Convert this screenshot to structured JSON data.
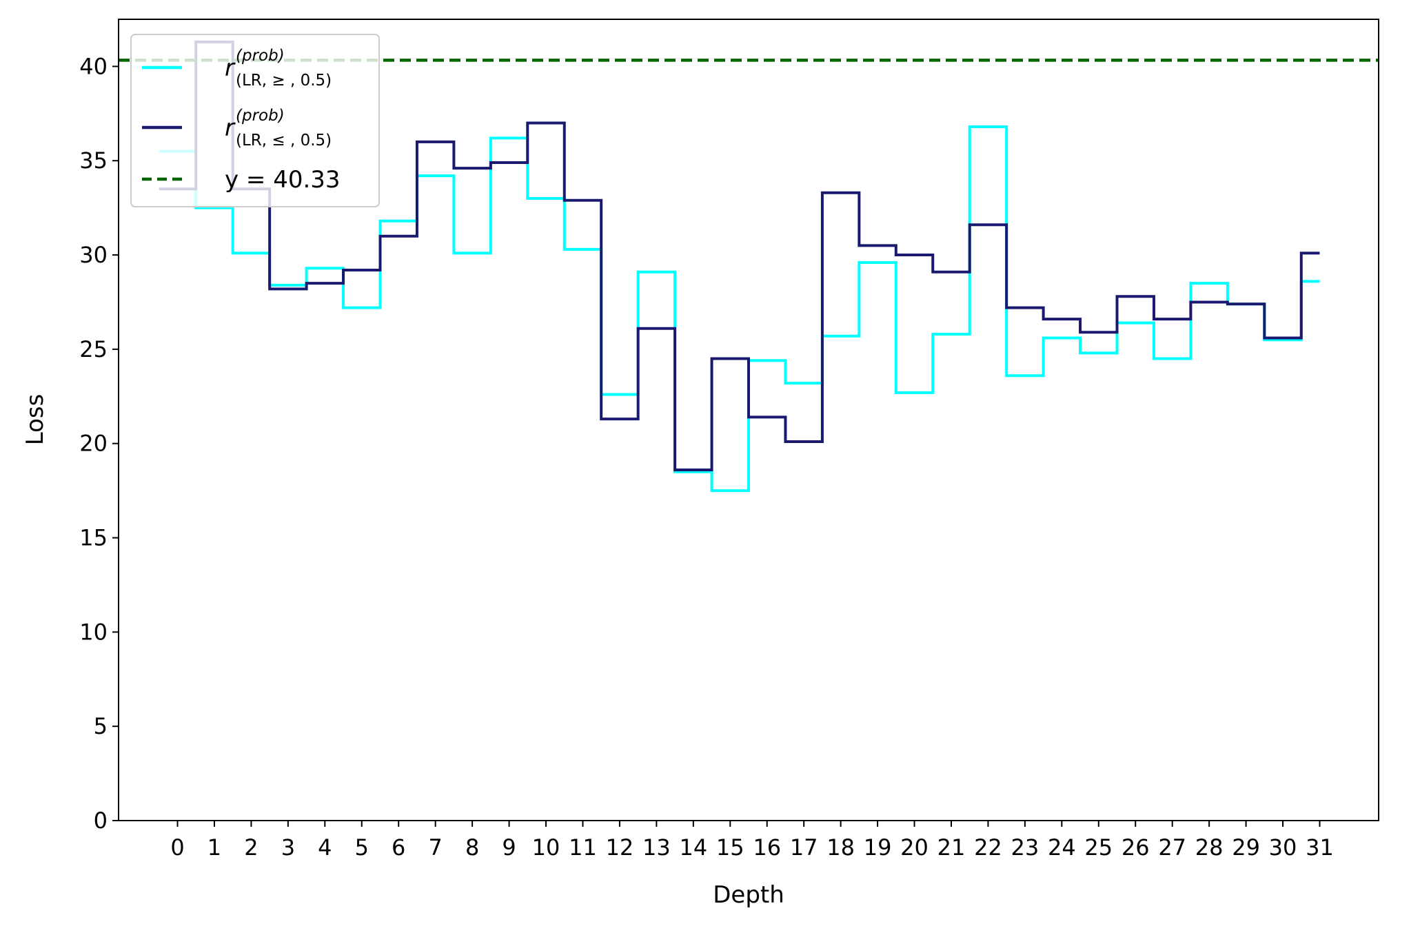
{
  "chart_data": {
    "type": "line",
    "drawstyle": "steps-mid",
    "xlabel": "Depth",
    "ylabel": "Loss",
    "ylim": [
      0,
      42.5
    ],
    "xlim": [
      -1.6,
      32.6
    ],
    "xticks": [
      0,
      1,
      2,
      3,
      4,
      5,
      6,
      7,
      8,
      9,
      10,
      11,
      12,
      13,
      14,
      15,
      16,
      17,
      18,
      19,
      20,
      21,
      22,
      23,
      24,
      25,
      26,
      27,
      28,
      29,
      30,
      31
    ],
    "yticks": [
      0,
      5,
      10,
      15,
      20,
      25,
      30,
      35,
      40
    ],
    "grid": false,
    "legend_position": "upper-left",
    "x": [
      0,
      1,
      2,
      3,
      4,
      5,
      6,
      7,
      8,
      9,
      10,
      11,
      12,
      13,
      14,
      15,
      16,
      17,
      18,
      19,
      20,
      21,
      22,
      23,
      24,
      25,
      26,
      27,
      28,
      29,
      30,
      31
    ],
    "series": [
      {
        "name": "r_{(LR, ≥, 0.5)}^{(prob)}",
        "legend_base": "r",
        "legend_sup": "(prob)",
        "legend_sub": "(LR, ≥ , 0.5)",
        "color": "#00ffff",
        "style": "solid",
        "values": [
          35.5,
          32.5,
          30.1,
          28.4,
          29.3,
          27.2,
          31.8,
          34.2,
          30.1,
          36.2,
          33.0,
          30.3,
          22.6,
          29.1,
          18.5,
          17.5,
          24.4,
          23.2,
          25.7,
          29.6,
          22.7,
          25.8,
          36.8,
          23.6,
          25.6,
          24.8,
          26.4,
          24.5,
          28.5,
          27.4,
          25.5,
          28.6
        ]
      },
      {
        "name": "r_{(LR, ≤, 0.5)}^{(prob)}",
        "legend_base": "r",
        "legend_sup": "(prob)",
        "legend_sub": "(LR, ≤ , 0.5)",
        "color": "#191970",
        "style": "solid",
        "values": [
          33.5,
          41.3,
          33.5,
          28.2,
          28.5,
          29.2,
          31.0,
          36.0,
          34.6,
          34.9,
          37.0,
          32.9,
          21.3,
          26.1,
          18.6,
          24.5,
          21.4,
          20.1,
          33.3,
          30.5,
          30.0,
          29.1,
          31.6,
          27.2,
          26.6,
          25.9,
          27.8,
          26.6,
          27.5,
          27.4,
          25.6,
          30.1
        ]
      }
    ],
    "hlines": [
      {
        "name": "y = 40.33",
        "y": 40.33,
        "color": "#006400",
        "style": "dashed"
      }
    ]
  }
}
